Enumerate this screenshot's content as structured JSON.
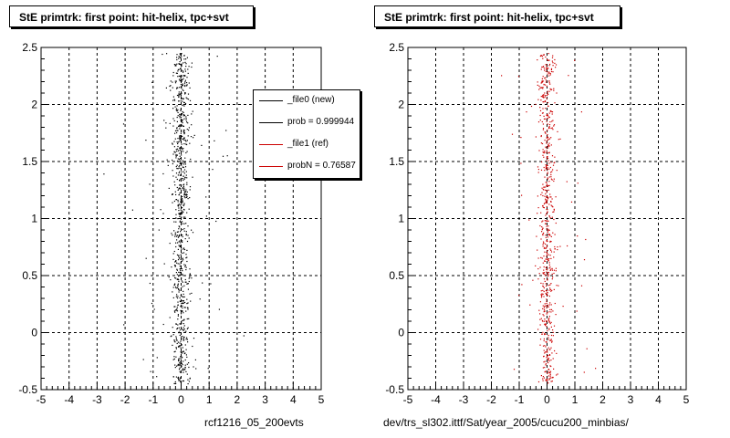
{
  "colors": {
    "file0": "#000000",
    "file1": "#cc0000",
    "grid": "#000000",
    "frame": "#000000"
  },
  "chart_data": [
    {
      "type": "scatter",
      "title": "StE primtrk: first point: hit-helix, tpc+svt",
      "xlabel": "rcf1216_05_200evts",
      "ylabel": "",
      "xlim": [
        -5,
        5
      ],
      "ylim": [
        -0.5,
        2.5
      ],
      "grid": true,
      "x_ticks": [
        "-5",
        "-4",
        "-3",
        "-2",
        "-1",
        "0",
        "1",
        "2",
        "3",
        "4",
        "5"
      ],
      "y_ticks": [
        "-0.5",
        "0",
        "0.5",
        "1",
        "1.5",
        "2",
        "2.5"
      ],
      "legend": {
        "placement": "top-right",
        "entries": [
          "_file0 (new)",
          "prob = 0.999944",
          "_file1 (ref)",
          "probN = 0.76587"
        ]
      },
      "series": [
        {
          "name": "_file0 (new)",
          "color": "#000000",
          "points": []
        }
      ]
    },
    {
      "type": "scatter",
      "title": "StE primtrk: first point: hit-helix, tpc+svt",
      "xlabel": "dev/trs_sl302.ittf/Sat/year_2005/cucu200_minbias/",
      "ylabel": "",
      "xlim": [
        -5,
        5
      ],
      "ylim": [
        -0.5,
        2.5
      ],
      "grid": true,
      "x_ticks": [
        "-5",
        "-4",
        "-3",
        "-2",
        "-1",
        "0",
        "1",
        "2",
        "3",
        "4",
        "5"
      ],
      "y_ticks": [
        "-0.5",
        "0",
        "0.5",
        "1",
        "1.5",
        "2",
        "2.5"
      ],
      "series": [
        {
          "name": "_file1 (ref)",
          "color": "#cc0000",
          "points": []
        }
      ]
    }
  ]
}
